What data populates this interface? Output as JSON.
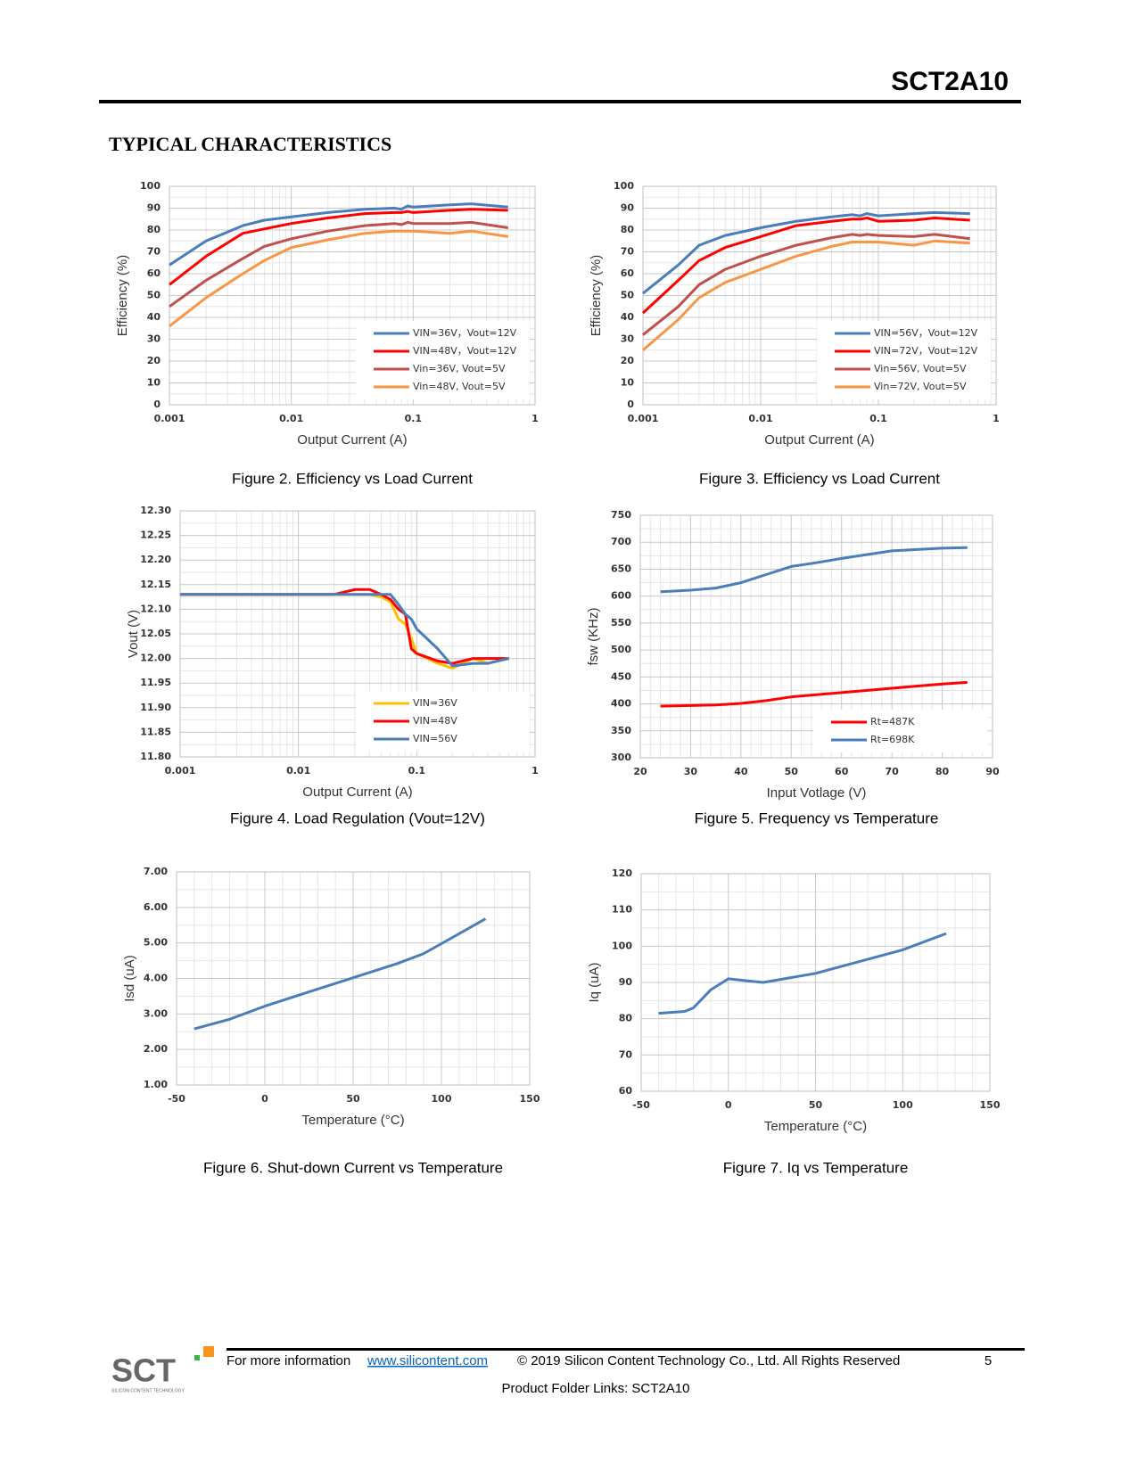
{
  "header": {
    "part_number": "SCT2A10",
    "section_title": "TYPICAL CHARACTERISTICS"
  },
  "chart_data": [
    {
      "type": "line",
      "caption": "Figure 2. Efficiency vs Load Current",
      "x_label": "Output Current (A)",
      "y_label": "Efficiency (%)",
      "x": [
        0.001,
        0.002,
        0.004,
        0.006,
        0.01,
        0.02,
        0.04,
        0.07,
        0.08,
        0.09,
        0.1,
        0.2,
        0.3,
        0.6
      ],
      "series": [
        {
          "name": "VIN=36V，Vout=12V",
          "color": "#4a7ebb",
          "values": [
            64,
            75,
            82,
            84.5,
            86,
            88,
            89.5,
            90,
            89.5,
            91,
            90.5,
            91.5,
            92,
            90.5
          ]
        },
        {
          "name": "VIN=48V，Vout=12V",
          "color": "#ff0000",
          "values": [
            55,
            68,
            78.5,
            80.5,
            83,
            85.5,
            87.5,
            88,
            88,
            88.5,
            88,
            89,
            89.5,
            89
          ]
        },
        {
          "name": "Vin=36V, Vout=5V",
          "color": "#c0504d",
          "values": [
            45,
            57,
            67,
            72.5,
            76,
            79.5,
            82,
            83,
            82.5,
            83.5,
            83,
            83,
            83.5,
            81
          ]
        },
        {
          "name": "Vin=48V, Vout=5V",
          "color": "#f79646",
          "values": [
            36,
            49,
            60,
            66,
            72,
            75.5,
            78.5,
            79.5,
            79.5,
            79.5,
            79.5,
            78.5,
            79.5,
            77
          ]
        }
      ],
      "xlog": true,
      "xlim": [
        0.001,
        1
      ],
      "xticks": [
        0.001,
        0.01,
        0.1,
        1
      ],
      "ylim": [
        0,
        100
      ],
      "yticks": [
        0,
        10,
        20,
        30,
        40,
        50,
        60,
        70,
        80,
        90,
        100
      ],
      "grid": true,
      "legend": "lower right"
    },
    {
      "type": "line",
      "caption": "Figure 3. Efficiency vs Load Current",
      "x_label": "Output Current (A)",
      "y_label": "Efficiency (%)",
      "x": [
        0.001,
        0.002,
        0.003,
        0.005,
        0.01,
        0.02,
        0.04,
        0.06,
        0.07,
        0.08,
        0.1,
        0.2,
        0.3,
        0.6
      ],
      "series": [
        {
          "name": "VIN=56V，Vout=12V",
          "color": "#4a7ebb",
          "values": [
            51,
            64,
            73,
            77.5,
            81,
            84,
            86,
            87,
            86.5,
            87.5,
            86.5,
            87.5,
            88,
            87.5
          ]
        },
        {
          "name": "VIN=72V，Vout=12V",
          "color": "#ff0000",
          "values": [
            42,
            57,
            66,
            72,
            77,
            82,
            84,
            85,
            85,
            85.5,
            84,
            84.5,
            85.5,
            84.5
          ]
        },
        {
          "name": "Vin=56V, Vout=5V",
          "color": "#c0504d",
          "values": [
            32,
            45,
            55,
            62,
            68,
            73,
            76.5,
            78,
            77.5,
            78,
            77.5,
            77,
            78,
            76
          ]
        },
        {
          "name": "Vin=72V, Vout=5V",
          "color": "#f79646",
          "values": [
            25,
            39,
            49,
            56,
            62,
            68,
            72.5,
            74.5,
            74.5,
            74.5,
            74.5,
            73,
            75,
            74
          ]
        }
      ],
      "xlog": true,
      "xlim": [
        0.001,
        1
      ],
      "xticks": [
        0.001,
        0.01,
        0.1,
        1
      ],
      "ylim": [
        0,
        100
      ],
      "yticks": [
        0,
        10,
        20,
        30,
        40,
        50,
        60,
        70,
        80,
        90,
        100
      ],
      "grid": true,
      "legend": "lower right"
    },
    {
      "type": "line",
      "caption": "Figure 4. Load Regulation (Vout=12V)",
      "x_label": "Output Current (A)",
      "y_label": "Vout (V)",
      "x": [
        0.001,
        0.01,
        0.02,
        0.03,
        0.04,
        0.05,
        0.06,
        0.07,
        0.08,
        0.09,
        0.1,
        0.15,
        0.2,
        0.3,
        0.4,
        0.6
      ],
      "series": [
        {
          "name": "VIN=36V",
          "color": "#ffc000",
          "values": [
            12.13,
            12.13,
            12.13,
            12.13,
            12.13,
            12.125,
            12.115,
            12.08,
            12.07,
            12.04,
            12.01,
            11.99,
            11.98,
            12.0,
            11.99,
            12.0
          ]
        },
        {
          "name": "VIN=48V",
          "color": "#ff0000",
          "values": [
            12.13,
            12.13,
            12.13,
            12.14,
            12.14,
            12.13,
            12.12,
            12.1,
            12.09,
            12.02,
            12.01,
            11.995,
            11.99,
            12.0,
            12.0,
            12.0
          ]
        },
        {
          "name": "VIN=56V",
          "color": "#4a7ebb",
          "values": [
            12.13,
            12.13,
            12.13,
            12.13,
            12.13,
            12.13,
            12.13,
            12.11,
            12.09,
            12.08,
            12.06,
            12.02,
            11.985,
            11.99,
            11.99,
            12.0
          ]
        }
      ],
      "xlog": true,
      "xlim": [
        0.001,
        1
      ],
      "xticks": [
        0.001,
        0.01,
        0.1,
        1
      ],
      "ylim": [
        11.8,
        12.3
      ],
      "yticks": [
        {
          "value": 11.8,
          "label": "11.80"
        },
        {
          "value": 11.85,
          "label": "11.85"
        },
        {
          "value": 11.9,
          "label": "11.90"
        },
        {
          "value": 11.95,
          "label": "11.95"
        },
        {
          "value": 12.0,
          "label": "12.00"
        },
        {
          "value": 12.05,
          "label": "12.05"
        },
        {
          "value": 12.1,
          "label": "12.10"
        },
        {
          "value": 12.15,
          "label": "12.15"
        },
        {
          "value": 12.2,
          "label": "12.20"
        },
        {
          "value": 12.25,
          "label": "12.25"
        },
        {
          "value": 12.3,
          "label": "12.30"
        }
      ],
      "grid": true,
      "legend": "lower right"
    },
    {
      "type": "line",
      "caption": "Figure 5. Frequency vs Temperature",
      "x_label": "Input Votlage (V)",
      "y_label": "fsw (KHz)",
      "x": [
        24,
        30,
        35,
        40,
        45,
        50,
        55,
        60,
        70,
        80,
        85
      ],
      "series": [
        {
          "name": "Rt=487K",
          "color": "#ff0000",
          "values": [
            396,
            397,
            398,
            401,
            406,
            413,
            417,
            421,
            429,
            437,
            440
          ]
        },
        {
          "name": "Rt=698K",
          "color": "#4a7ebb",
          "values": [
            608,
            611,
            615,
            625,
            640,
            655,
            662,
            670,
            684,
            689,
            690
          ]
        }
      ],
      "xlog": false,
      "xlim": [
        20,
        90
      ],
      "xticks": [
        20,
        30,
        40,
        50,
        60,
        70,
        80,
        90
      ],
      "ylim": [
        300,
        750
      ],
      "yticks": [
        300,
        350,
        400,
        450,
        500,
        550,
        600,
        650,
        700,
        750
      ],
      "grid": true,
      "legend": "lower right"
    },
    {
      "type": "line",
      "caption": "Figure 6. Shut-down Current vs Temperature",
      "x_label": "Temperature (°C)",
      "y_label": "Isd (uA)",
      "x": [
        -40,
        -20,
        0,
        25,
        50,
        75,
        90,
        100,
        125
      ],
      "series": [
        {
          "color": "#4a7ebb",
          "values": [
            2.58,
            2.85,
            3.22,
            3.62,
            4.02,
            4.42,
            4.7,
            4.98,
            5.68
          ]
        }
      ],
      "xlog": false,
      "xlim": [
        -50,
        150
      ],
      "xticks": [
        -50,
        0,
        50,
        100,
        150
      ],
      "ylim": [
        1,
        7
      ],
      "yticks": [
        {
          "value": 1,
          "label": "1.00"
        },
        {
          "value": 2,
          "label": "2.00"
        },
        {
          "value": 3,
          "label": "3.00"
        },
        {
          "value": 4,
          "label": "4.00"
        },
        {
          "value": 5,
          "label": "5.00"
        },
        {
          "value": 6,
          "label": "6.00"
        },
        {
          "value": 7,
          "label": "7.00"
        }
      ],
      "grid": true
    },
    {
      "type": "line",
      "caption": "Figure 7. Iq vs Temperature",
      "x_label": "Temperature (°C)",
      "y_label": "Iq (uA)",
      "x": [
        -40,
        -25,
        -20,
        -10,
        0,
        10,
        20,
        50,
        100,
        125
      ],
      "series": [
        {
          "color": "#4a7ebb",
          "values": [
            81.5,
            82,
            83,
            88,
            91,
            90.5,
            90,
            92.5,
            99,
            103.5
          ]
        }
      ],
      "xlog": false,
      "xlim": [
        -50,
        150
      ],
      "xticks": [
        -50,
        0,
        50,
        100,
        150
      ],
      "ylim": [
        60,
        120
      ],
      "yticks": [
        60,
        70,
        80,
        90,
        100,
        110,
        120
      ],
      "grid": true
    }
  ],
  "footer": {
    "info": "For more information",
    "link": "www.silicontent.com",
    "copyright": "© 2019  Silicon Content Technology Co., Ltd.   All Rights Reserved",
    "page": "5",
    "folder_links": "Product Folder Links:  SCT2A10",
    "logo": "SCT",
    "logo_tagline": "SILICON CONTENT TECHNOLOGY"
  }
}
